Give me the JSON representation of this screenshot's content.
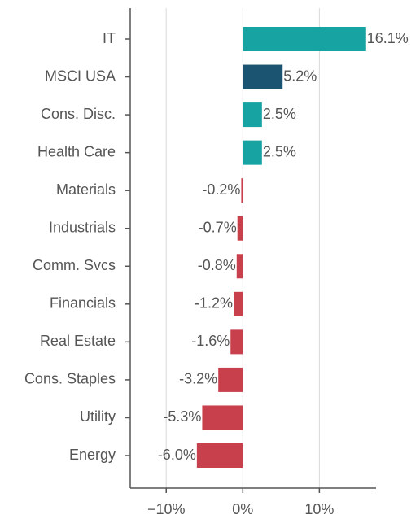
{
  "chart_data": {
    "type": "barh",
    "categories": [
      "IT",
      "MSCI USA",
      "Cons. Disc.",
      "Health Care",
      "Materials",
      "Industrials",
      "Comm. Svcs",
      "Financials",
      "Real Estate",
      "Cons. Staples",
      "Utility",
      "Energy"
    ],
    "values": [
      16.1,
      5.2,
      2.5,
      2.5,
      -0.2,
      -0.7,
      -0.8,
      -1.2,
      -1.6,
      -3.2,
      -5.3,
      -6.0
    ],
    "value_labels": [
      "16.1%",
      "5.2%",
      "2.5%",
      "2.5%",
      "-0.2%",
      "-0.7%",
      "-0.8%",
      "-1.2%",
      "-1.6%",
      "-3.2%",
      "-5.3%",
      "-6.0%"
    ],
    "colors": [
      "#16a3a1",
      "#1b5470",
      "#16a3a1",
      "#16a3a1",
      "#c8404c",
      "#c8404c",
      "#c8404c",
      "#c8404c",
      "#c8404c",
      "#c8404c",
      "#c8404c",
      "#c8404c"
    ],
    "xlim": [
      -14.7,
      17.4
    ],
    "xticks": [
      {
        "value": -10,
        "label": "−10%"
      },
      {
        "value": 0,
        "label": "0%"
      },
      {
        "value": 10,
        "label": "10%"
      }
    ],
    "grid": true
  }
}
